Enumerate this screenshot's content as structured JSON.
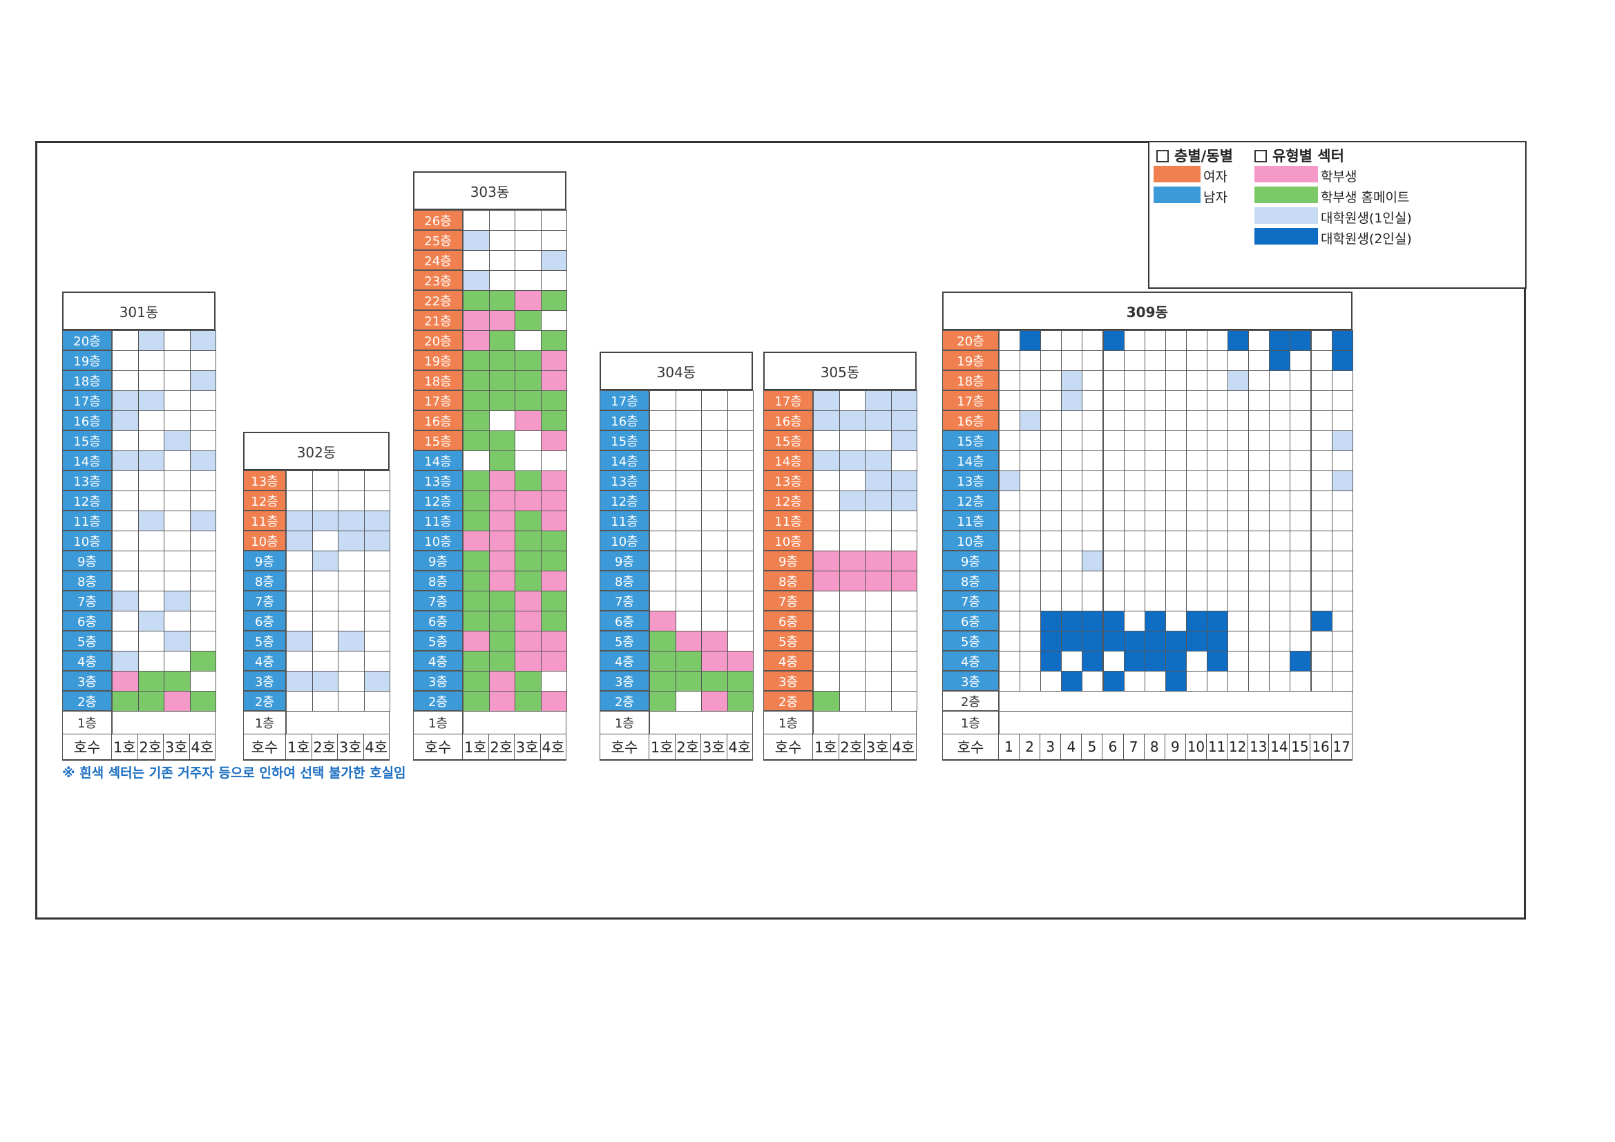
{
  "colors": {
    "female": "#f08050",
    "male": "#3d9ad8",
    "undergrad": "#f59ac8",
    "homemate": "#7cc96a",
    "grad1": "#c7dcf4",
    "grad2": "#0f6dc3",
    "white": "#ffffff"
  },
  "legend": {
    "section1": "층별/동별",
    "section2": "유형별 섹터",
    "female": "여자",
    "male": "남자",
    "undergrad": "학부생",
    "homemate": "학부생 홈메이트",
    "grad1": "대학원생(1인실)",
    "grad2": "대학원생(2인실)"
  },
  "note": "※ 흰색 섹터는 기존 거주자 등으로 인하여 선택 불가한 호실임",
  "footer_label": "호수",
  "first_floor": "1층",
  "buildings": [
    {
      "name": "301동",
      "units": [
        "1호",
        "2호",
        "3호",
        "4호"
      ],
      "floors": [
        {
          "f": "20층",
          "g": "m",
          "c": "WGWG"
        },
        {
          "f": "19층",
          "g": "m",
          "c": "WWWW"
        },
        {
          "f": "18층",
          "g": "m",
          "c": "WWWG"
        },
        {
          "f": "17층",
          "g": "m",
          "c": "GGWW"
        },
        {
          "f": "16층",
          "g": "m",
          "c": "GWWW"
        },
        {
          "f": "15층",
          "g": "m",
          "c": "WWGW"
        },
        {
          "f": "14층",
          "g": "m",
          "c": "GGWG"
        },
        {
          "f": "13층",
          "g": "m",
          "c": "WWWW"
        },
        {
          "f": "12층",
          "g": "m",
          "c": "WWWW"
        },
        {
          "f": "11층",
          "g": "m",
          "c": "WGWG"
        },
        {
          "f": "10층",
          "g": "m",
          "c": "WWWW"
        },
        {
          "f": "9층",
          "g": "m",
          "c": "WWWW"
        },
        {
          "f": "8층",
          "g": "m",
          "c": "WWWW"
        },
        {
          "f": "7층",
          "g": "m",
          "c": "GWGW"
        },
        {
          "f": "6층",
          "g": "m",
          "c": "WGWW"
        },
        {
          "f": "5층",
          "g": "m",
          "c": "WWGW"
        },
        {
          "f": "4층",
          "g": "m",
          "c": "GWWH"
        },
        {
          "f": "3층",
          "g": "m",
          "c": "UHHW"
        },
        {
          "f": "2층",
          "g": "m",
          "c": "HHUH"
        }
      ]
    },
    {
      "name": "302동",
      "units": [
        "1호",
        "2호",
        "3호",
        "4호"
      ],
      "floors": [
        {
          "f": "13층",
          "g": "f",
          "c": "WWWW"
        },
        {
          "f": "12층",
          "g": "f",
          "c": "WWWW"
        },
        {
          "f": "11층",
          "g": "f",
          "c": "GGGG"
        },
        {
          "f": "10층",
          "g": "f",
          "c": "GWGG"
        },
        {
          "f": "9층",
          "g": "m",
          "c": "WGWW"
        },
        {
          "f": "8층",
          "g": "m",
          "c": "WWWW"
        },
        {
          "f": "7층",
          "g": "m",
          "c": "WWWW"
        },
        {
          "f": "6층",
          "g": "m",
          "c": "WWWW"
        },
        {
          "f": "5층",
          "g": "m",
          "c": "GWGW"
        },
        {
          "f": "4층",
          "g": "m",
          "c": "WWWW"
        },
        {
          "f": "3층",
          "g": "m",
          "c": "GGWG"
        },
        {
          "f": "2층",
          "g": "m",
          "c": "WWWW"
        }
      ]
    },
    {
      "name": "303동",
      "units": [
        "1호",
        "2호",
        "3호",
        "4호"
      ],
      "floors": [
        {
          "f": "26층",
          "g": "f",
          "c": "WWWW"
        },
        {
          "f": "25층",
          "g": "f",
          "c": "GWWW"
        },
        {
          "f": "24층",
          "g": "f",
          "c": "WWWG"
        },
        {
          "f": "23층",
          "g": "f",
          "c": "GWWW"
        },
        {
          "f": "22층",
          "g": "f",
          "c": "HHUH"
        },
        {
          "f": "21층",
          "g": "f",
          "c": "UUHW"
        },
        {
          "f": "20층",
          "g": "f",
          "c": "UHWH"
        },
        {
          "f": "19층",
          "g": "f",
          "c": "HHHU"
        },
        {
          "f": "18층",
          "g": "f",
          "c": "HHHU"
        },
        {
          "f": "17층",
          "g": "f",
          "c": "HHHH"
        },
        {
          "f": "16층",
          "g": "f",
          "c": "HWUH"
        },
        {
          "f": "15층",
          "g": "f",
          "c": "HHWU"
        },
        {
          "f": "14층",
          "g": "m",
          "c": "WHWW"
        },
        {
          "f": "13층",
          "g": "m",
          "c": "HUHU"
        },
        {
          "f": "12층",
          "g": "m",
          "c": "HUUU"
        },
        {
          "f": "11층",
          "g": "m",
          "c": "HUHU"
        },
        {
          "f": "10층",
          "g": "m",
          "c": "UUHH"
        },
        {
          "f": "9층",
          "g": "m",
          "c": "HUHH"
        },
        {
          "f": "8층",
          "g": "m",
          "c": "HUHU"
        },
        {
          "f": "7층",
          "g": "m",
          "c": "HHUH"
        },
        {
          "f": "6층",
          "g": "m",
          "c": "HHUH"
        },
        {
          "f": "5층",
          "g": "m",
          "c": "UHUU"
        },
        {
          "f": "4층",
          "g": "m",
          "c": "HHUU"
        },
        {
          "f": "3층",
          "g": "m",
          "c": "HUHW"
        },
        {
          "f": "2층",
          "g": "m",
          "c": "HUHU"
        }
      ]
    },
    {
      "name": "304동",
      "units": [
        "1호",
        "2호",
        "3호",
        "4호"
      ],
      "floors": [
        {
          "f": "17층",
          "g": "m",
          "c": "WWWW"
        },
        {
          "f": "16층",
          "g": "m",
          "c": "WWWW"
        },
        {
          "f": "15층",
          "g": "m",
          "c": "WWWW"
        },
        {
          "f": "14층",
          "g": "m",
          "c": "WWWW"
        },
        {
          "f": "13층",
          "g": "m",
          "c": "WWWW"
        },
        {
          "f": "12층",
          "g": "m",
          "c": "WWWW"
        },
        {
          "f": "11층",
          "g": "m",
          "c": "WWWW"
        },
        {
          "f": "10층",
          "g": "m",
          "c": "WWWW"
        },
        {
          "f": "9층",
          "g": "m",
          "c": "WWWW"
        },
        {
          "f": "8층",
          "g": "m",
          "c": "WWWW"
        },
        {
          "f": "7층",
          "g": "m",
          "c": "WWWW"
        },
        {
          "f": "6층",
          "g": "m",
          "c": "UWWW"
        },
        {
          "f": "5층",
          "g": "m",
          "c": "HUUW"
        },
        {
          "f": "4층",
          "g": "m",
          "c": "HHUU"
        },
        {
          "f": "3층",
          "g": "m",
          "c": "HHHH"
        },
        {
          "f": "2층",
          "g": "m",
          "c": "HWUH"
        }
      ]
    },
    {
      "name": "305동",
      "units": [
        "1호",
        "2호",
        "3호",
        "4호"
      ],
      "floors": [
        {
          "f": "17층",
          "g": "f",
          "c": "GWGG"
        },
        {
          "f": "16층",
          "g": "f",
          "c": "GGGG"
        },
        {
          "f": "15층",
          "g": "f",
          "c": "WWWG"
        },
        {
          "f": "14층",
          "g": "f",
          "c": "GGGW"
        },
        {
          "f": "13층",
          "g": "f",
          "c": "WWGG"
        },
        {
          "f": "12층",
          "g": "f",
          "c": "WGGG"
        },
        {
          "f": "11층",
          "g": "f",
          "c": "WWWW"
        },
        {
          "f": "10층",
          "g": "f",
          "c": "WWWW"
        },
        {
          "f": "9층",
          "g": "f",
          "c": "UUUU"
        },
        {
          "f": "8층",
          "g": "f",
          "c": "UUUU"
        },
        {
          "f": "7층",
          "g": "f",
          "c": "WWWW"
        },
        {
          "f": "6층",
          "g": "f",
          "c": "WWWW"
        },
        {
          "f": "5층",
          "g": "f",
          "c": "WWWW"
        },
        {
          "f": "4층",
          "g": "f",
          "c": "WWWW"
        },
        {
          "f": "3층",
          "g": "f",
          "c": "WWWW"
        },
        {
          "f": "2층",
          "g": "f",
          "c": "HWWW"
        }
      ]
    },
    {
      "name": "309동",
      "units": [
        "1",
        "2",
        "3",
        "4",
        "5",
        "6",
        "7",
        "8",
        "9",
        "10",
        "11",
        "12",
        "13",
        "14",
        "15",
        "16",
        "17"
      ],
      "floors": [
        {
          "f": "20층",
          "g": "f",
          "c": "WDWWWDWWWWWDWDDWD"
        },
        {
          "f": "19층",
          "g": "f",
          "c": "WWWWWWWWWWWWWDWWD"
        },
        {
          "f": "18층",
          "g": "f",
          "c": "WWWGWWWWWWWGWWWWW"
        },
        {
          "f": "17층",
          "g": "f",
          "c": "WWWGWWWWWWWWWWWWW"
        },
        {
          "f": "16층",
          "g": "f",
          "c": "WGWWWWWWWWWWWWWWW"
        },
        {
          "f": "15층",
          "g": "m",
          "c": "WWWWWWWWWWWWWWWWG"
        },
        {
          "f": "14층",
          "g": "m",
          "c": "WWWWWWWWWWWWWWWWW"
        },
        {
          "f": "13층",
          "g": "m",
          "c": "GWWWWWWWWWWWWWWWG"
        },
        {
          "f": "12층",
          "g": "m",
          "c": "WWWWWWWWWWWWWWWWW"
        },
        {
          "f": "11층",
          "g": "m",
          "c": "WWWWWWWWWWWWWWWWW"
        },
        {
          "f": "10층",
          "g": "m",
          "c": "WWWWWWWWWWWWWWWWW"
        },
        {
          "f": "9층",
          "g": "m",
          "c": "WWWWGWWWWWWWWWWWW"
        },
        {
          "f": "8층",
          "g": "m",
          "c": "WWWWWWWWWWWWWWWWW"
        },
        {
          "f": "7층",
          "g": "m",
          "c": "WWWWWWWWWWWWWWWWW"
        },
        {
          "f": "6층",
          "g": "m",
          "c": "WWDDDDWDWDDWWWWDW"
        },
        {
          "f": "5층",
          "g": "m",
          "c": "WWDDDDDDDDDWWWWWW"
        },
        {
          "f": "4층",
          "g": "m",
          "c": "WWDWDWDDDWDWWWDWW"
        },
        {
          "f": "3층",
          "g": "m",
          "c": "WWWDWDWWDWWWWWWWW"
        }
      ],
      "extra_floor": "2층"
    }
  ]
}
